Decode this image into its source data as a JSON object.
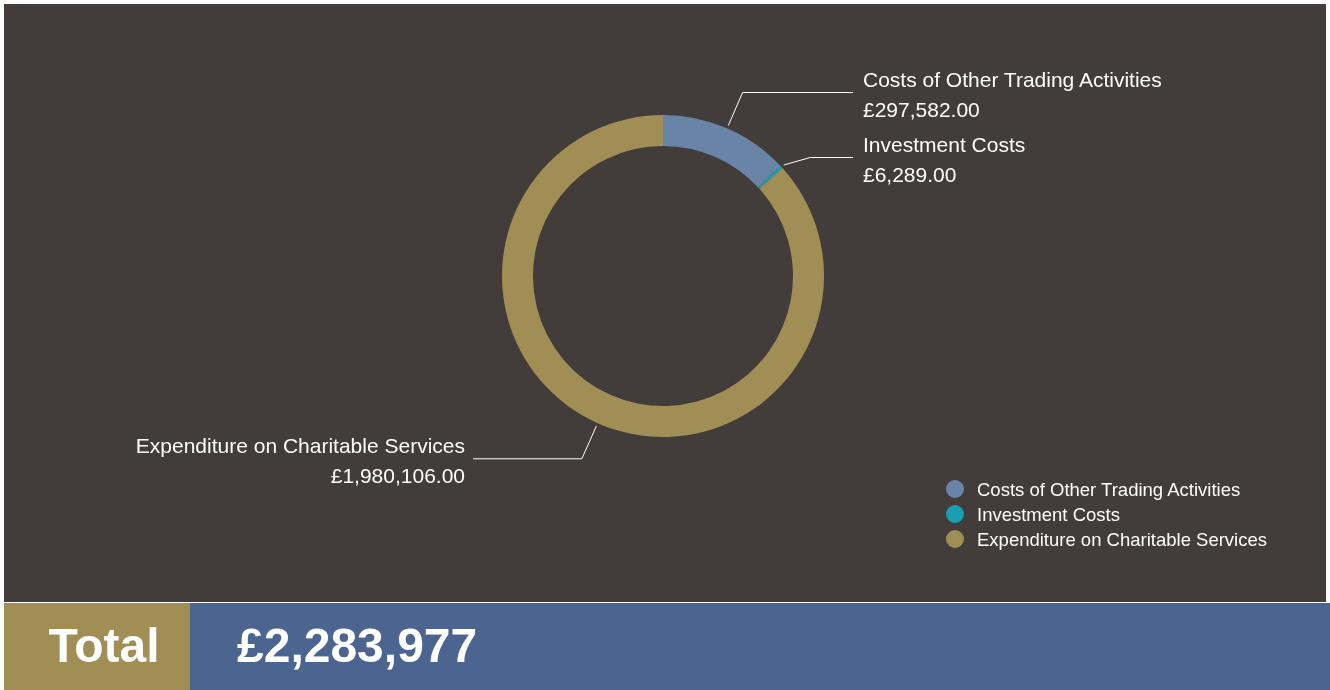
{
  "chart_data": {
    "type": "donut",
    "categories": [
      "Costs of Other Trading Activities",
      "Investment Costs",
      "Expenditure on Charitable Services"
    ],
    "values": [
      297582,
      6289,
      1980106
    ],
    "colors": [
      "#6a84a8",
      "#1a9fb0",
      "#a08e55"
    ],
    "value_labels": [
      "£297,582.00",
      "£6,289.00",
      "£1,980,106.00"
    ],
    "legend": "bottom right",
    "annotations": [
      "Total",
      "£2,283,977"
    ]
  }
}
